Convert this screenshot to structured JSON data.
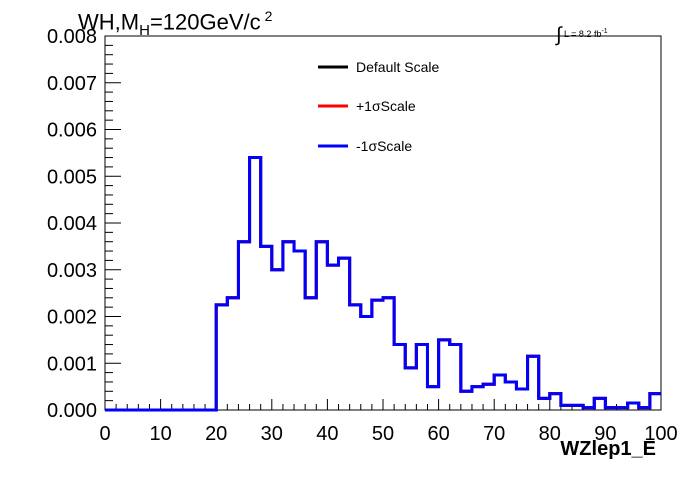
{
  "title_parts": {
    "a": "WH,M",
    "sub": "H",
    "b": "=120GeV/c",
    "sup": "2"
  },
  "lumi_parts": {
    "integral": "∫",
    "text": "L = 8.2 fb",
    "sup": "-1"
  },
  "chart_data": {
    "type": "histogram",
    "title": "WH,MH=120GeV/c2",
    "xlabel": "WZlep1_E",
    "ylabel": "",
    "xlim": [
      0,
      100
    ],
    "ylim": [
      0,
      0.008
    ],
    "x_ticks": [
      "0",
      "10",
      "20",
      "30",
      "40",
      "50",
      "60",
      "70",
      "80",
      "90",
      "100"
    ],
    "y_ticks": [
      "0.000",
      "0.001",
      "0.002",
      "0.003",
      "0.004",
      "0.005",
      "0.006",
      "0.007",
      "0.008"
    ],
    "bin_width": 2,
    "bin_edges_start": 0,
    "legend_position": "top-center",
    "series": [
      {
        "name": "Default Scale",
        "color": "#000000",
        "values": [
          0,
          0,
          0,
          0,
          0,
          0,
          0,
          0,
          0,
          0,
          0.00225,
          0.0024,
          0.0036,
          0.0054,
          0.0035,
          0.003,
          0.0036,
          0.0034,
          0.0024,
          0.0036,
          0.0031,
          0.00325,
          0.00225,
          0.002,
          0.00235,
          0.0024,
          0.0014,
          0.0009,
          0.0014,
          0.0005,
          0.0015,
          0.0014,
          0.0004,
          0.0005,
          0.00055,
          0.00075,
          0.0006,
          0.00045,
          0.00115,
          0.00025,
          0.00035,
          0.0001,
          0.0001,
          5e-05,
          0.00025,
          5e-05,
          5e-05,
          0.00015,
          5e-05,
          0.00035
        ]
      },
      {
        "name": "+1σScale",
        "color": "#ff0000",
        "values": [
          0,
          0,
          0,
          0,
          0,
          0,
          0,
          0,
          0,
          0,
          0.00225,
          0.0024,
          0.0036,
          0.0054,
          0.0035,
          0.003,
          0.0036,
          0.0034,
          0.0024,
          0.0036,
          0.0031,
          0.00325,
          0.00225,
          0.002,
          0.00235,
          0.0024,
          0.0014,
          0.0009,
          0.0014,
          0.0005,
          0.0015,
          0.0014,
          0.0004,
          0.0005,
          0.00055,
          0.00075,
          0.0006,
          0.00045,
          0.00115,
          0.00025,
          0.00035,
          0.0001,
          0.0001,
          5e-05,
          0.00025,
          5e-05,
          5e-05,
          0.00015,
          5e-05,
          0.00035
        ]
      },
      {
        "name": "-1σScale",
        "color": "#0000ff",
        "values": [
          0,
          0,
          0,
          0,
          0,
          0,
          0,
          0,
          0,
          0,
          0.00225,
          0.0024,
          0.0036,
          0.0054,
          0.0035,
          0.003,
          0.0036,
          0.0034,
          0.0024,
          0.0036,
          0.0031,
          0.00325,
          0.00225,
          0.002,
          0.00235,
          0.0024,
          0.0014,
          0.0009,
          0.0014,
          0.0005,
          0.0015,
          0.0014,
          0.0004,
          0.0005,
          0.00055,
          0.00075,
          0.0006,
          0.00045,
          0.00115,
          0.00025,
          0.00035,
          0.0001,
          0.0001,
          5e-05,
          0.00025,
          5e-05,
          5e-05,
          0.00015,
          5e-05,
          0.00035
        ]
      }
    ]
  }
}
